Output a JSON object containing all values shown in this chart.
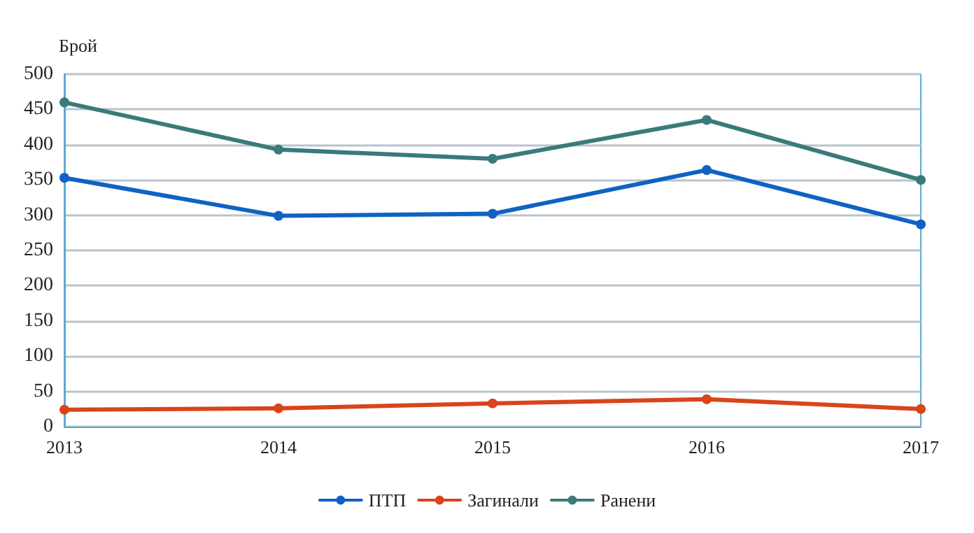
{
  "chart_data": {
    "type": "line",
    "ylabel": "Брой",
    "categories": [
      "2013",
      "2014",
      "2015",
      "2016",
      "2017"
    ],
    "series": [
      {
        "name": "ПТП",
        "color": "#0f62c4",
        "values": [
          353,
          299,
          302,
          364,
          287
        ]
      },
      {
        "name": "Загинали",
        "color": "#d9441a",
        "values": [
          24,
          26,
          33,
          39,
          25
        ]
      },
      {
        "name": "Ранени",
        "color": "#3a7a7a",
        "values": [
          460,
          393,
          380,
          435,
          350
        ]
      }
    ],
    "ylim": [
      0,
      500
    ],
    "yticks": [
      0,
      50,
      100,
      150,
      200,
      250,
      300,
      350,
      400,
      450,
      500
    ],
    "grid": "y",
    "legend": "bottom",
    "marker": "circle",
    "line_style": "solid"
  }
}
